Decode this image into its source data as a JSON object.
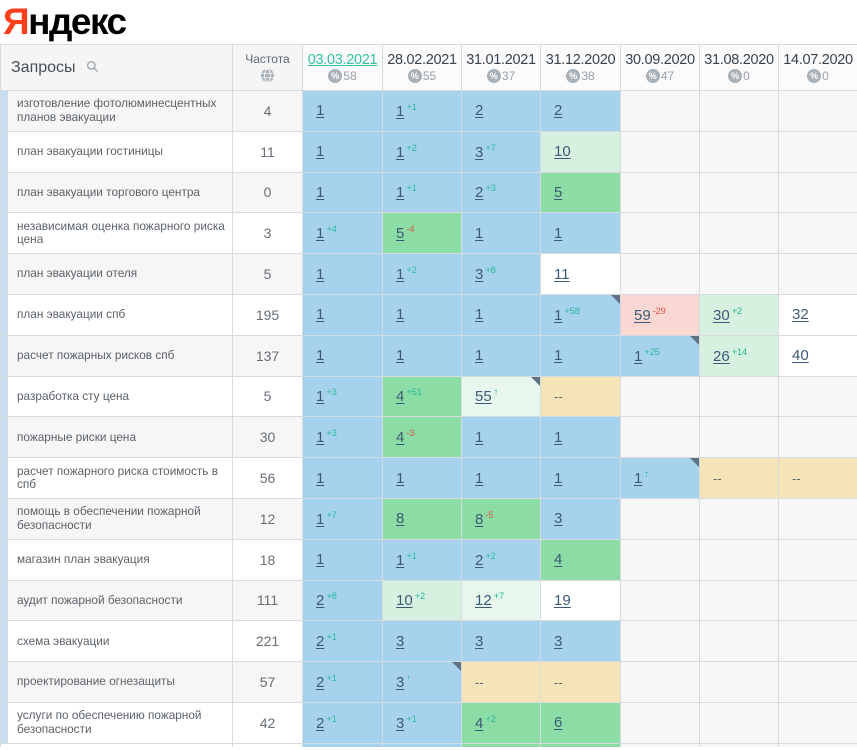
{
  "logo": {
    "first_letter": "Я",
    "rest": "ндекс"
  },
  "colors": {
    "top3_cell": "#a7d2ee",
    "top10_cell": "#8bdda5",
    "improved_cell": "#d6f1e0",
    "improved_light_cell": "#e8f7ee",
    "declined_cell": "#f9d8d4",
    "no_data_cell": "#f6e4b9",
    "delta_up": "#29b999",
    "delta_down": "#e1584e",
    "selected_date": "#35c1a1",
    "position_link": "#3c5a77",
    "logo_red": "#fc3f1d"
  },
  "table": {
    "queries_header": "Запросы",
    "frequency_header": "Частота",
    "icons": {
      "queries": "search-icon",
      "frequency": "globe-icon",
      "column_badge": "percent-icon"
    },
    "columns": [
      {
        "date": "03.03.2021",
        "percent": "58",
        "selected": true
      },
      {
        "date": "28.02.2021",
        "percent": "55",
        "selected": false
      },
      {
        "date": "31.01.2021",
        "percent": "37",
        "selected": false
      },
      {
        "date": "31.12.2020",
        "percent": "38",
        "selected": false
      },
      {
        "date": "30.09.2020",
        "percent": "47",
        "selected": false
      },
      {
        "date": "31.08.2020",
        "percent": "0",
        "selected": false
      },
      {
        "date": "14.07.2020",
        "percent": "0",
        "selected": false
      }
    ],
    "rows": [
      {
        "query": "изготовление фотолюминесцентных планов эвакуации",
        "freq": "4",
        "cells": [
          {
            "p": "1",
            "bg": "blue"
          },
          {
            "p": "1",
            "d": "+1",
            "dc": "up",
            "bg": "blue"
          },
          {
            "p": "2",
            "bg": "blue"
          },
          {
            "p": "2",
            "bg": "blue"
          },
          {
            "bg": "empty"
          },
          {
            "bg": "empty"
          },
          {
            "bg": "empty"
          }
        ]
      },
      {
        "query": "план эвакуации гостиницы",
        "freq": "11",
        "cells": [
          {
            "p": "1",
            "bg": "blue"
          },
          {
            "p": "1",
            "d": "+2",
            "dc": "up",
            "bg": "blue"
          },
          {
            "p": "3",
            "d": "+7",
            "dc": "up",
            "bg": "blue"
          },
          {
            "p": "10",
            "bg": "lightgreen"
          },
          {
            "bg": "empty"
          },
          {
            "bg": "empty"
          },
          {
            "bg": "empty"
          }
        ]
      },
      {
        "query": "план эвакуации торгового центра",
        "freq": "0",
        "cells": [
          {
            "p": "1",
            "bg": "blue"
          },
          {
            "p": "1",
            "d": "+1",
            "dc": "up",
            "bg": "blue"
          },
          {
            "p": "2",
            "d": "+3",
            "dc": "up",
            "bg": "blue"
          },
          {
            "p": "5",
            "bg": "green"
          },
          {
            "bg": "empty"
          },
          {
            "bg": "empty"
          },
          {
            "bg": "empty"
          }
        ]
      },
      {
        "query": "независимая оценка пожарного риска цена",
        "freq": "3",
        "cells": [
          {
            "p": "1",
            "d": "+4",
            "dc": "up",
            "bg": "blue"
          },
          {
            "p": "5",
            "d": "-4",
            "dc": "down",
            "bg": "green"
          },
          {
            "p": "1",
            "bg": "blue"
          },
          {
            "p": "1",
            "bg": "blue"
          },
          {
            "bg": "empty"
          },
          {
            "bg": "empty"
          },
          {
            "bg": "empty"
          }
        ]
      },
      {
        "query": "план эвакуации отеля",
        "freq": "5",
        "cells": [
          {
            "p": "1",
            "bg": "blue"
          },
          {
            "p": "1",
            "d": "+2",
            "dc": "up",
            "bg": "blue"
          },
          {
            "p": "3",
            "d": "+8",
            "dc": "up",
            "bg": "blue"
          },
          {
            "p": "11",
            "bg": "white"
          },
          {
            "bg": "empty"
          },
          {
            "bg": "empty"
          },
          {
            "bg": "empty"
          }
        ]
      },
      {
        "query": "план эвакуации спб",
        "freq": "195",
        "cells": [
          {
            "p": "1",
            "bg": "blue"
          },
          {
            "p": "1",
            "bg": "blue"
          },
          {
            "p": "1",
            "bg": "blue"
          },
          {
            "p": "1",
            "d": "+58",
            "dc": "up",
            "bg": "blue",
            "note": true
          },
          {
            "p": "59",
            "d": "-29",
            "dc": "down",
            "bg": "pink"
          },
          {
            "p": "30",
            "d": "+2",
            "dc": "up",
            "bg": "lightgreen"
          },
          {
            "p": "32",
            "bg": "white"
          }
        ]
      },
      {
        "query": "расчет пожарных рисков спб",
        "freq": "137",
        "cells": [
          {
            "p": "1",
            "bg": "blue"
          },
          {
            "p": "1",
            "bg": "blue"
          },
          {
            "p": "1",
            "bg": "blue"
          },
          {
            "p": "1",
            "bg": "blue"
          },
          {
            "p": "1",
            "d": "+25",
            "dc": "up",
            "bg": "blue",
            "note": true
          },
          {
            "p": "26",
            "d": "+14",
            "dc": "up",
            "bg": "lightgreen"
          },
          {
            "p": "40",
            "bg": "white"
          }
        ]
      },
      {
        "query": "разработка сту цена",
        "freq": "5",
        "cells": [
          {
            "p": "1",
            "d": "+3",
            "dc": "up",
            "bg": "blue"
          },
          {
            "p": "4",
            "d": "+51",
            "dc": "up",
            "bg": "green"
          },
          {
            "p": "55",
            "d": "↑",
            "dc": "up",
            "bg": "palegreen",
            "note": true
          },
          {
            "p": "--",
            "bg": "tan"
          },
          {
            "bg": "empty"
          },
          {
            "bg": "empty"
          },
          {
            "bg": "empty"
          }
        ]
      },
      {
        "query": "пожарные риски цена",
        "freq": "30",
        "cells": [
          {
            "p": "1",
            "d": "+3",
            "dc": "up",
            "bg": "blue"
          },
          {
            "p": "4",
            "d": "-3",
            "dc": "down",
            "bg": "green"
          },
          {
            "p": "1",
            "bg": "blue"
          },
          {
            "p": "1",
            "bg": "blue"
          },
          {
            "bg": "empty"
          },
          {
            "bg": "empty"
          },
          {
            "bg": "empty"
          }
        ]
      },
      {
        "query": "расчет пожарного риска стоимость в спб",
        "freq": "56",
        "cells": [
          {
            "p": "1",
            "bg": "blue"
          },
          {
            "p": "1",
            "bg": "blue"
          },
          {
            "p": "1",
            "bg": "blue"
          },
          {
            "p": "1",
            "bg": "blue"
          },
          {
            "p": "1",
            "d": "↑",
            "dc": "up",
            "bg": "blue",
            "note": true
          },
          {
            "p": "--",
            "bg": "tan"
          },
          {
            "p": "--",
            "bg": "tan"
          }
        ]
      },
      {
        "query": "помощь в обеспечении пожарной безопасности",
        "freq": "12",
        "cells": [
          {
            "p": "1",
            "d": "+7",
            "dc": "up",
            "bg": "blue"
          },
          {
            "p": "8",
            "bg": "green"
          },
          {
            "p": "8",
            "d": "-5",
            "dc": "down",
            "bg": "green"
          },
          {
            "p": "3",
            "bg": "blue"
          },
          {
            "bg": "empty"
          },
          {
            "bg": "empty"
          },
          {
            "bg": "empty"
          }
        ]
      },
      {
        "query": "магазин план эвакуация",
        "freq": "18",
        "cells": [
          {
            "p": "1",
            "bg": "blue"
          },
          {
            "p": "1",
            "d": "+1",
            "dc": "up",
            "bg": "blue"
          },
          {
            "p": "2",
            "d": "+2",
            "dc": "up",
            "bg": "blue"
          },
          {
            "p": "4",
            "bg": "green"
          },
          {
            "bg": "empty"
          },
          {
            "bg": "empty"
          },
          {
            "bg": "empty"
          }
        ]
      },
      {
        "query": "аудит пожарной безопасности",
        "freq": "111",
        "cells": [
          {
            "p": "2",
            "d": "+8",
            "dc": "up",
            "bg": "blue"
          },
          {
            "p": "10",
            "d": "+2",
            "dc": "up",
            "bg": "lightgreen"
          },
          {
            "p": "12",
            "d": "+7",
            "dc": "up",
            "bg": "palegreen"
          },
          {
            "p": "19",
            "bg": "white"
          },
          {
            "bg": "empty"
          },
          {
            "bg": "empty"
          },
          {
            "bg": "empty"
          }
        ]
      },
      {
        "query": "схема эвакуации",
        "freq": "221",
        "cells": [
          {
            "p": "2",
            "d": "+1",
            "dc": "up",
            "bg": "blue"
          },
          {
            "p": "3",
            "bg": "blue"
          },
          {
            "p": "3",
            "bg": "blue"
          },
          {
            "p": "3",
            "bg": "blue"
          },
          {
            "bg": "empty"
          },
          {
            "bg": "empty"
          },
          {
            "bg": "empty"
          }
        ]
      },
      {
        "query": "проектирование огнезащиты",
        "freq": "57",
        "cells": [
          {
            "p": "2",
            "d": "+1",
            "dc": "up",
            "bg": "blue"
          },
          {
            "p": "3",
            "d": "↑",
            "dc": "up",
            "bg": "blue",
            "note": true
          },
          {
            "p": "--",
            "bg": "tan"
          },
          {
            "p": "--",
            "bg": "tan"
          },
          {
            "bg": "empty"
          },
          {
            "bg": "empty"
          },
          {
            "bg": "empty"
          }
        ]
      },
      {
        "query": "услуги по обеспечению пожарной безопасности",
        "freq": "42",
        "cells": [
          {
            "p": "2",
            "d": "+1",
            "dc": "up",
            "bg": "blue"
          },
          {
            "p": "3",
            "d": "+1",
            "dc": "up",
            "bg": "blue"
          },
          {
            "p": "4",
            "d": "+2",
            "dc": "up",
            "bg": "green"
          },
          {
            "p": "6",
            "bg": "green"
          },
          {
            "bg": "empty"
          },
          {
            "bg": "empty"
          },
          {
            "bg": "empty"
          }
        ]
      }
    ],
    "next_row_preview": [
      "white",
      "white",
      "blue",
      "blue",
      "green",
      "green",
      "empty",
      "empty",
      "empty"
    ]
  }
}
